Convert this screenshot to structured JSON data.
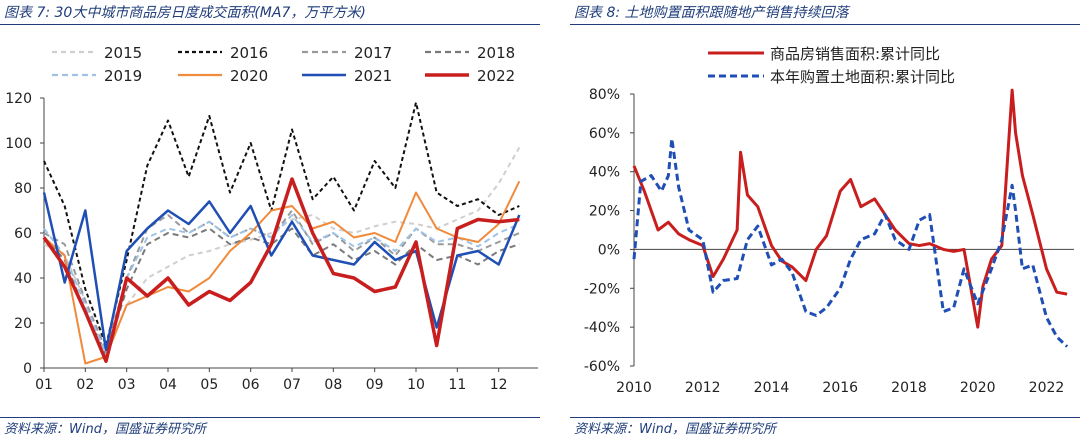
{
  "chart_data": [
    {
      "type": "line",
      "title": "图表 7:  30大中城市商品房日度成交面积(MA7，万平方米)",
      "source": "资料来源：Wind，国盛证券研究所",
      "xlabel": "",
      "ylabel": "",
      "x_ticks": [
        "01",
        "02",
        "03",
        "04",
        "05",
        "06",
        "07",
        "08",
        "09",
        "10",
        "11",
        "12"
      ],
      "y_ticks": [
        "0",
        "20",
        "40",
        "60",
        "80",
        "100",
        "120"
      ],
      "ylim": [
        0,
        120
      ],
      "x": [
        1,
        1.5,
        2,
        2.5,
        3,
        3.5,
        4,
        4.5,
        5,
        5.5,
        6,
        6.5,
        7,
        7.5,
        8,
        8.5,
        9,
        9.5,
        10,
        10.5,
        11,
        11.5,
        12,
        12.5
      ],
      "series": [
        {
          "name": "2015",
          "color": "#cfcfcf",
          "dash": "5,4",
          "width": 2,
          "values": [
            55,
            50,
            30,
            5,
            28,
            40,
            45,
            50,
            52,
            55,
            57,
            60,
            66,
            68,
            62,
            60,
            63,
            65,
            64,
            62,
            66,
            70,
            82,
            98
          ]
        },
        {
          "name": "2016",
          "color": "#111111",
          "dash": "4,3",
          "width": 2,
          "values": [
            92,
            72,
            35,
            10,
            48,
            90,
            110,
            85,
            112,
            78,
            100,
            70,
            106,
            75,
            85,
            70,
            92,
            80,
            118,
            78,
            72,
            75,
            68,
            72
          ]
        },
        {
          "name": "2017",
          "color": "#9a9a9a",
          "dash": "6,4",
          "width": 2,
          "values": [
            60,
            55,
            30,
            8,
            40,
            62,
            68,
            60,
            65,
            58,
            62,
            58,
            70,
            55,
            60,
            52,
            58,
            50,
            62,
            55,
            55,
            52,
            56,
            60
          ]
        },
        {
          "name": "2018",
          "color": "#7a7a7a",
          "dash": "6,4",
          "width": 2,
          "values": [
            58,
            48,
            25,
            6,
            35,
            55,
            60,
            58,
            62,
            55,
            58,
            55,
            62,
            50,
            55,
            48,
            52,
            46,
            55,
            48,
            50,
            46,
            52,
            55
          ]
        },
        {
          "name": "2019",
          "color": "#9ec3e6",
          "dash": "6,4",
          "width": 2,
          "values": [
            62,
            50,
            28,
            6,
            40,
            58,
            62,
            60,
            65,
            58,
            62,
            58,
            68,
            56,
            60,
            54,
            58,
            52,
            62,
            56,
            58,
            54,
            60,
            64
          ]
        },
        {
          "name": "2020",
          "color": "#f08a3c",
          "dash": "",
          "width": 2,
          "values": [
            58,
            50,
            2,
            5,
            28,
            32,
            36,
            34,
            40,
            52,
            60,
            70,
            72,
            62,
            65,
            58,
            60,
            56,
            78,
            62,
            58,
            56,
            64,
            83
          ]
        },
        {
          "name": "2021",
          "color": "#1f4fb4",
          "dash": "",
          "width": 2.5,
          "values": [
            78,
            38,
            70,
            8,
            52,
            62,
            70,
            64,
            74,
            60,
            72,
            50,
            65,
            50,
            48,
            46,
            56,
            48,
            52,
            18,
            50,
            52,
            46,
            68
          ]
        },
        {
          "name": "2022",
          "color": "#c81e1e",
          "dash": "",
          "width": 3.5,
          "values": [
            58,
            45,
            25,
            3,
            40,
            32,
            40,
            28,
            34,
            30,
            38,
            55,
            84,
            60,
            42,
            40,
            34,
            36,
            56,
            10,
            62,
            66,
            65,
            66
          ]
        }
      ],
      "legend": "top"
    },
    {
      "type": "line",
      "title": "图表 8:  土地购置面积跟随地产销售持续回落",
      "source": "资料来源：Wind，国盛证券研究所",
      "xlabel": "",
      "ylabel": "",
      "x_ticks": [
        "2010",
        "2012",
        "2014",
        "2016",
        "2018",
        "2020",
        "2022"
      ],
      "y_ticks": [
        "-60%",
        "-40%",
        "-20%",
        "0%",
        "20%",
        "40%",
        "60%",
        "80%"
      ],
      "xlim": [
        2010,
        2022.8
      ],
      "ylim": [
        -60,
        80
      ],
      "series": [
        {
          "name": "商品房销售面积:累计同比",
          "color": "#c81e1e",
          "dash": "",
          "width": 3,
          "x": [
            2010,
            2010.3,
            2010.7,
            2011,
            2011.3,
            2011.6,
            2012,
            2012.3,
            2012.6,
            2013,
            2013.1,
            2013.3,
            2013.6,
            2014,
            2014.3,
            2014.6,
            2015,
            2015.3,
            2015.6,
            2016,
            2016.3,
            2016.6,
            2017,
            2017.3,
            2017.6,
            2018,
            2018.3,
            2018.6,
            2019,
            2019.3,
            2019.6,
            2020,
            2020.15,
            2020.4,
            2020.7,
            2021,
            2021.1,
            2021.3,
            2021.6,
            2022,
            2022.3,
            2022.6
          ],
          "values": [
            43,
            30,
            10,
            14,
            8,
            5,
            2,
            -14,
            -5,
            10,
            50,
            28,
            22,
            2,
            -6,
            -9,
            -16,
            0,
            7,
            30,
            36,
            22,
            26,
            18,
            10,
            3,
            2,
            3,
            0,
            -1,
            0,
            -40,
            -19,
            -5,
            2,
            82,
            60,
            38,
            18,
            -10,
            -22,
            -23
          ]
        },
        {
          "name": "本年购置土地面积:累计同比",
          "color": "#1f4fb4",
          "dash": "7,4",
          "width": 3,
          "x": [
            2010,
            2010.2,
            2010.5,
            2010.8,
            2011,
            2011.1,
            2011.3,
            2011.6,
            2012,
            2012.3,
            2012.6,
            2013,
            2013.3,
            2013.6,
            2014,
            2014.3,
            2014.6,
            2015,
            2015.3,
            2015.6,
            2016,
            2016.3,
            2016.6,
            2017,
            2017.3,
            2017.6,
            2018,
            2018.3,
            2018.6,
            2019,
            2019.3,
            2019.6,
            2020,
            2020.4,
            2020.7,
            2021,
            2021.1,
            2021.3,
            2021.6,
            2022,
            2022.3,
            2022.6
          ],
          "values": [
            -5,
            35,
            38,
            30,
            38,
            57,
            32,
            10,
            5,
            -22,
            -16,
            -15,
            5,
            12,
            -8,
            -5,
            -12,
            -32,
            -34,
            -30,
            -20,
            -5,
            5,
            8,
            18,
            5,
            0,
            15,
            18,
            -32,
            -30,
            -10,
            -28,
            -10,
            5,
            33,
            20,
            -10,
            -8,
            -35,
            -45,
            -50
          ]
        }
      ],
      "legend": "top"
    }
  ]
}
